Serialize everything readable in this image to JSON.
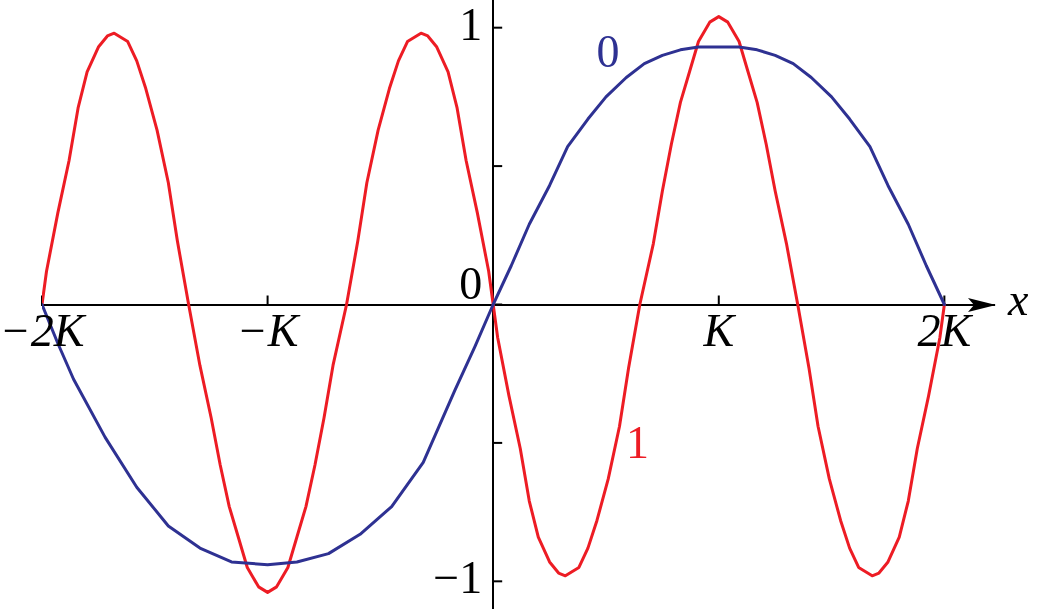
{
  "chart_data": {
    "type": "line",
    "xlabel": "x",
    "xlim": [
      -2,
      2.22
    ],
    "xticks": [
      {
        "value": -2,
        "label": "−2K"
      },
      {
        "value": -1,
        "label": "−K"
      },
      {
        "value": 1,
        "label": "K"
      },
      {
        "value": 2,
        "label": "2K"
      }
    ],
    "ylim": [
      -1.1,
      1.1
    ],
    "yticks": [
      {
        "value": -1,
        "label": "−1"
      },
      {
        "value": -0.5,
        "label": null
      },
      0,
      {
        "value": 0.5,
        "label": null
      },
      1
    ],
    "grid": false,
    "legend": false,
    "marker": "none",
    "line_style": "solid",
    "series": [
      {
        "name": "0",
        "color": "#2e3192",
        "x": [
          -2,
          -1.93,
          -1.86,
          -1.72,
          -1.58,
          -1.44,
          -1.3,
          -1.16,
          -1,
          -0.87,
          -0.73,
          -0.59,
          -0.45,
          -0.31,
          -0.17,
          -0.08,
          0,
          0.08,
          0.16,
          0.25,
          0.33,
          0.42,
          0.5,
          0.59,
          0.67,
          0.75,
          0.83,
          0.91,
          1,
          1.09,
          1.17,
          1.25,
          1.33,
          1.41,
          1.5,
          1.58,
          1.67,
          1.75,
          1.84,
          1.92,
          2
        ],
        "values": [
          0,
          -0.14,
          -0.27,
          -0.48,
          -0.66,
          -0.8,
          -0.88,
          -0.93,
          -0.94,
          -0.93,
          -0.9,
          -0.83,
          -0.73,
          -0.57,
          -0.31,
          -0.15,
          0,
          0.14,
          0.29,
          0.43,
          0.57,
          0.67,
          0.75,
          0.82,
          0.87,
          0.9,
          0.92,
          0.93,
          0.93,
          0.93,
          0.92,
          0.9,
          0.87,
          0.82,
          0.75,
          0.67,
          0.57,
          0.43,
          0.29,
          0.14,
          0
        ]
      },
      {
        "name": "1",
        "color": "#ed1c24",
        "x": [
          -2,
          -1.98,
          -1.93,
          -1.88,
          -1.84,
          -1.8,
          -1.75,
          -1.71,
          -1.68,
          -1.62,
          -1.58,
          -1.54,
          -1.49,
          -1.44,
          -1.4,
          -1.35,
          -1.3,
          -1.25,
          -1.21,
          -1.17,
          -1.13,
          -1.09,
          -1.04,
          -1,
          -0.96,
          -0.91,
          -0.87,
          -0.83,
          -0.79,
          -0.75,
          -0.71,
          -0.65,
          -0.6,
          -0.56,
          -0.51,
          -0.46,
          -0.42,
          -0.38,
          -0.32,
          -0.29,
          -0.25,
          -0.2,
          -0.16,
          -0.12,
          -0.07,
          -0.02,
          0,
          0.02,
          0.07,
          0.12,
          0.16,
          0.2,
          0.25,
          0.29,
          0.32,
          0.38,
          0.42,
          0.46,
          0.51,
          0.56,
          0.6,
          0.65,
          0.71,
          0.75,
          0.79,
          0.83,
          0.87,
          0.91,
          0.96,
          1,
          1.04,
          1.09,
          1.13,
          1.17,
          1.21,
          1.25,
          1.3,
          1.35,
          1.4,
          1.44,
          1.49,
          1.54,
          1.58,
          1.62,
          1.68,
          1.71,
          1.75,
          1.8,
          1.84,
          1.88,
          1.93,
          1.98,
          2
        ],
        "values": [
          0,
          0.12,
          0.33,
          0.52,
          0.71,
          0.84,
          0.93,
          0.97,
          0.98,
          0.95,
          0.88,
          0.78,
          0.63,
          0.44,
          0.23,
          0,
          -0.22,
          -0.41,
          -0.58,
          -0.73,
          -0.84,
          -0.95,
          -1.02,
          -1.04,
          -1.02,
          -0.95,
          -0.84,
          -0.73,
          -0.58,
          -0.41,
          -0.22,
          0,
          0.23,
          0.44,
          0.63,
          0.78,
          0.88,
          0.95,
          0.98,
          0.97,
          0.93,
          0.84,
          0.71,
          0.52,
          0.33,
          0.12,
          0,
          -0.12,
          -0.33,
          -0.52,
          -0.71,
          -0.84,
          -0.93,
          -0.97,
          -0.98,
          -0.95,
          -0.88,
          -0.78,
          -0.63,
          -0.44,
          -0.23,
          0,
          0.22,
          0.41,
          0.58,
          0.73,
          0.84,
          0.95,
          1.02,
          1.04,
          1.02,
          0.95,
          0.84,
          0.73,
          0.58,
          0.41,
          0.22,
          0,
          -0.23,
          -0.44,
          -0.63,
          -0.78,
          -0.88,
          -0.95,
          -0.98,
          -0.97,
          -0.93,
          -0.84,
          -0.71,
          -0.52,
          -0.33,
          -0.12,
          0
        ]
      }
    ]
  }
}
